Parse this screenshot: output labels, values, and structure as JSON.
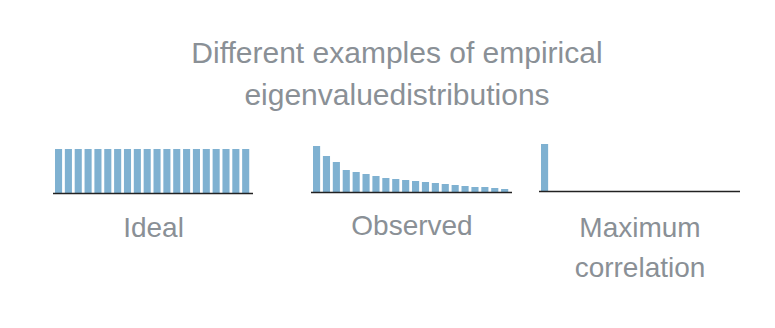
{
  "title": "Different examples of empirical eigenvaluedistributions",
  "chart_data": [
    {
      "type": "bar",
      "title": "Ideal",
      "tick_labels": false,
      "color": "#7fb1d1",
      "ylim": [
        0,
        50
      ],
      "values": [
        44,
        44,
        44,
        44,
        44,
        44,
        44,
        44,
        44,
        44,
        44,
        44,
        44,
        44,
        44,
        44,
        44,
        44,
        44,
        44
      ]
    },
    {
      "type": "bar",
      "title": "Observed",
      "tick_labels": false,
      "color": "#7fb1d1",
      "ylim": [
        0,
        50
      ],
      "values": [
        46,
        36,
        30,
        22,
        20,
        18,
        16,
        14,
        13,
        12,
        11,
        10,
        9,
        8,
        7,
        6,
        5,
        5,
        4,
        3
      ]
    },
    {
      "type": "bar",
      "title": "Maximum correlation",
      "tick_labels": false,
      "color": "#7fb1d1",
      "ylim": [
        0,
        50
      ],
      "values": [
        47,
        0,
        0,
        0,
        0,
        0,
        0,
        0,
        0,
        0,
        0,
        0,
        0,
        0,
        0,
        0,
        0,
        0,
        0,
        0
      ]
    }
  ]
}
